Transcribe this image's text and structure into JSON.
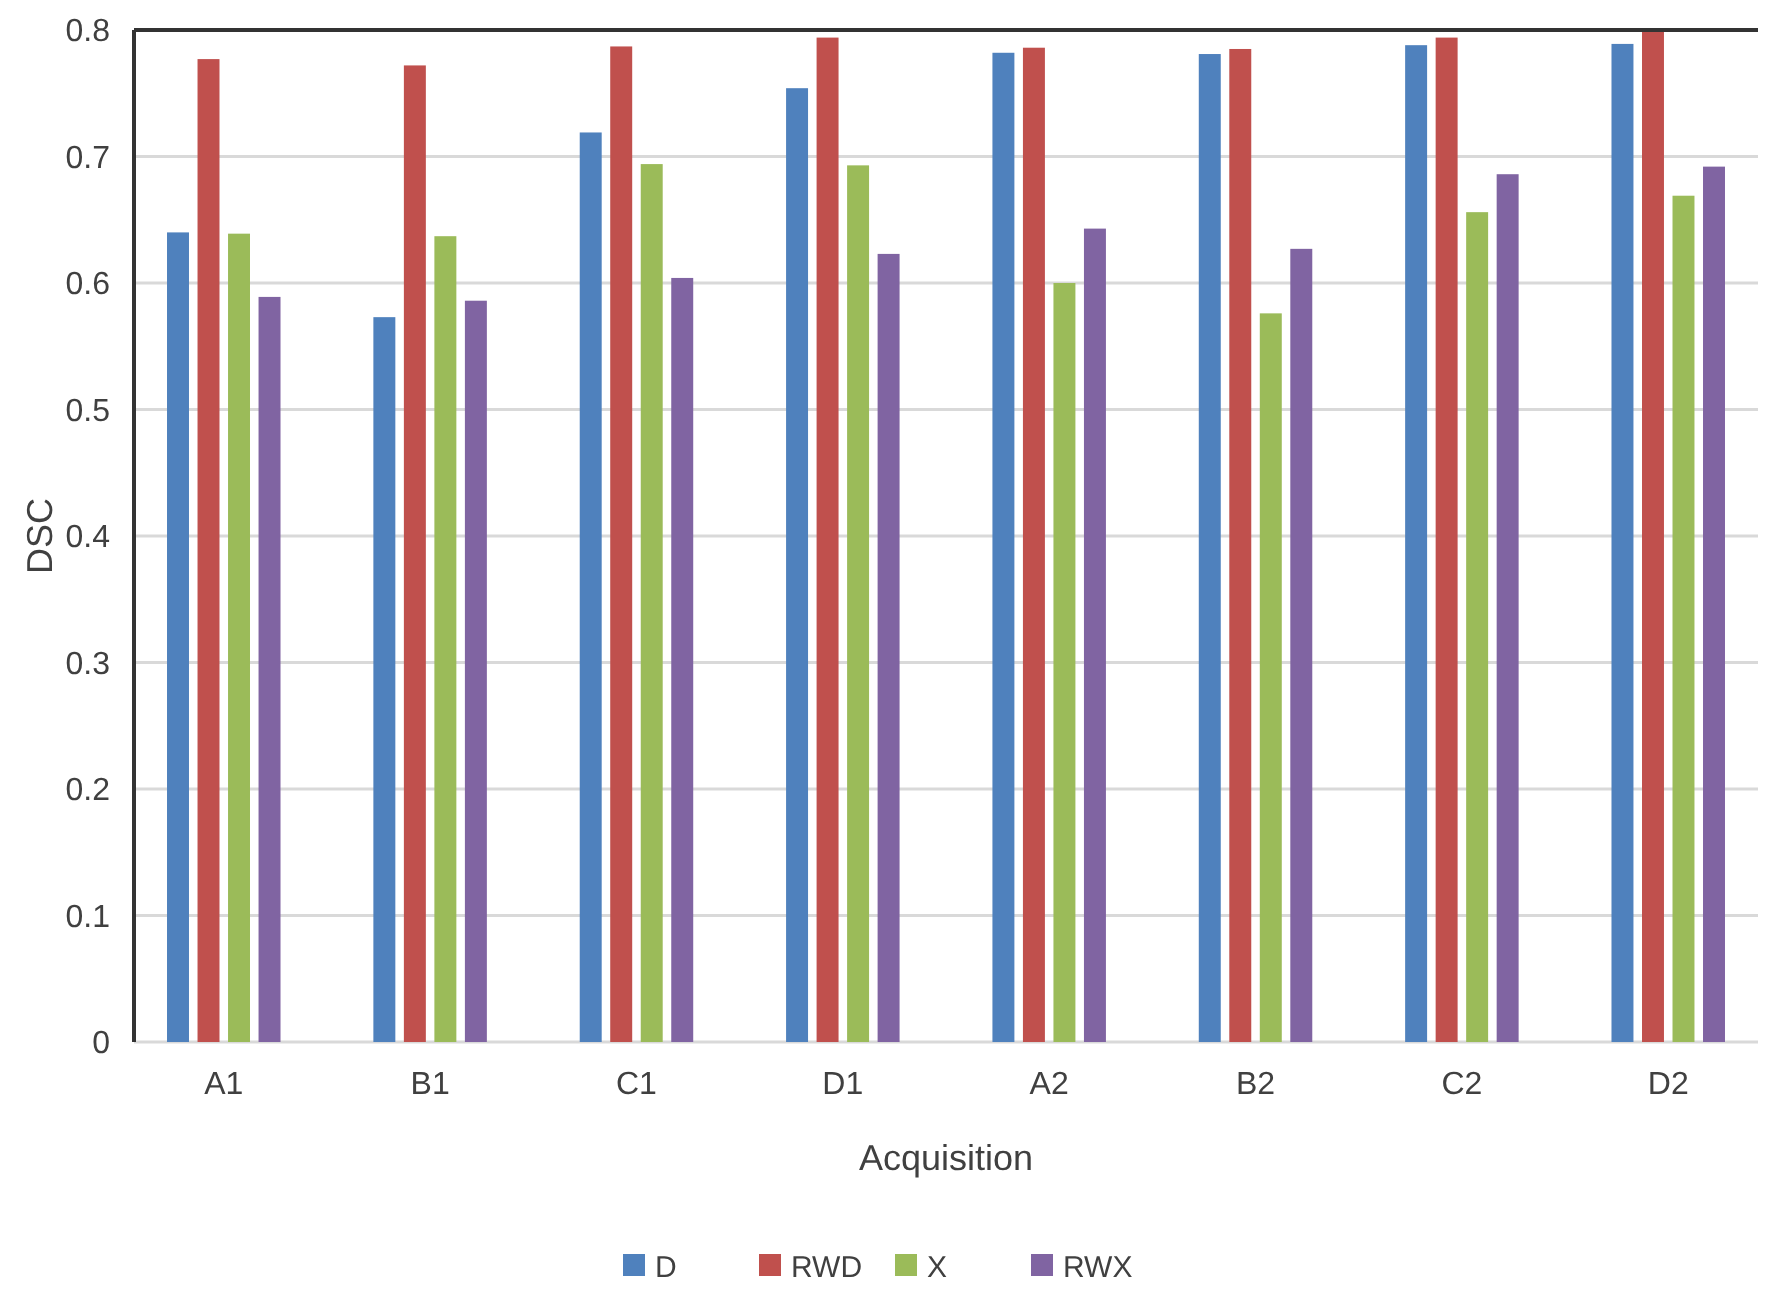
{
  "chart_data": {
    "type": "bar",
    "xlabel": "Acquisition",
    "ylabel": "DSC",
    "categories": [
      "A1",
      "B1",
      "C1",
      "D1",
      "A2",
      "B2",
      "C2",
      "D2"
    ],
    "series": [
      {
        "name": "D",
        "color": "#4f81bd",
        "values": [
          0.64,
          0.573,
          0.719,
          0.754,
          0.782,
          0.781,
          0.788,
          0.789
        ]
      },
      {
        "name": "RWD",
        "color": "#c0504d",
        "values": [
          0.777,
          0.772,
          0.787,
          0.794,
          0.786,
          0.785,
          0.794,
          0.8
        ]
      },
      {
        "name": "X",
        "color": "#9bbb59",
        "values": [
          0.639,
          0.637,
          0.694,
          0.693,
          0.6,
          0.576,
          0.656,
          0.669
        ]
      },
      {
        "name": "RWX",
        "color": "#8064a2",
        "values": [
          0.589,
          0.586,
          0.604,
          0.623,
          0.643,
          0.627,
          0.686,
          0.692
        ]
      }
    ],
    "ylim": [
      0,
      0.8
    ],
    "yticks": [
      0,
      0.1,
      0.2,
      0.3,
      0.4,
      0.5,
      0.6,
      0.7,
      0.8
    ],
    "grid": "y",
    "legend": "bottom"
  }
}
